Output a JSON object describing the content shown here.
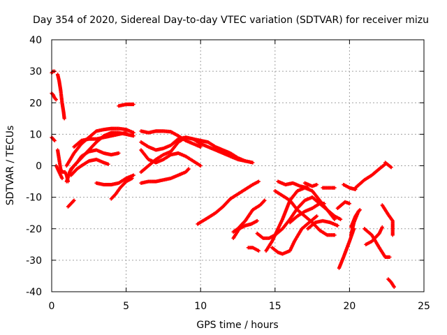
{
  "chart_data": {
    "type": "scatter",
    "title": "Day 354 of 2020, Sidereal Day-to-day VTEC variation (SDTVAR) for receiver mizu",
    "xlabel": "GPS time / hours",
    "ylabel": "SDTVAR / TECUs",
    "xlim": [
      0,
      25
    ],
    "ylim": [
      -40,
      40
    ],
    "xticks": [
      "0",
      "5",
      "10",
      "15",
      "20",
      "25"
    ],
    "yticks": [
      "-40",
      "-30",
      "-20",
      "-10",
      "0",
      "10",
      "20",
      "30",
      "40"
    ],
    "grid": true,
    "marker": "plus",
    "color": "#ff0000",
    "tracks": [
      [
        [
          0.0,
          29.5
        ],
        [
          0.1,
          30
        ],
        [
          0.2,
          30
        ]
      ],
      [
        [
          0.0,
          23
        ],
        [
          0.1,
          22.5
        ],
        [
          0.2,
          21.5
        ],
        [
          0.3,
          21
        ]
      ],
      [
        [
          0.4,
          29
        ],
        [
          0.5,
          27
        ],
        [
          0.6,
          24
        ],
        [
          0.7,
          20
        ],
        [
          0.8,
          17
        ],
        [
          0.85,
          15
        ]
      ],
      [
        [
          0.0,
          9
        ],
        [
          0.1,
          8.5
        ],
        [
          0.2,
          8
        ]
      ],
      [
        [
          0.4,
          5
        ],
        [
          0.5,
          2
        ],
        [
          0.6,
          -1
        ],
        [
          0.7,
          -2
        ],
        [
          0.9,
          -2
        ],
        [
          1.0,
          -3
        ],
        [
          1.1,
          -5
        ]
      ],
      [
        [
          0.3,
          0
        ],
        [
          0.5,
          -2
        ],
        [
          0.7,
          -4
        ]
      ],
      [
        [
          1.1,
          -13
        ],
        [
          1.2,
          -12.5
        ],
        [
          1.3,
          -12
        ],
        [
          1.5,
          -11
        ]
      ],
      [
        [
          4.5,
          19
        ],
        [
          5.0,
          19.5
        ],
        [
          5.5,
          19.5
        ]
      ],
      [
        [
          1.0,
          0
        ],
        [
          1.5,
          4
        ],
        [
          2.0,
          7
        ],
        [
          2.5,
          9
        ],
        [
          3.0,
          11
        ],
        [
          3.5,
          11.5
        ],
        [
          4.0,
          11.8
        ],
        [
          4.5,
          11.8
        ],
        [
          5.0,
          11.5
        ],
        [
          5.5,
          10.5
        ]
      ],
      [
        [
          1.2,
          -2
        ],
        [
          1.5,
          0
        ],
        [
          2.0,
          2.5
        ],
        [
          2.5,
          5
        ],
        [
          3.0,
          7.5
        ],
        [
          3.5,
          9.5
        ],
        [
          4.0,
          10.5
        ],
        [
          4.5,
          10.5
        ],
        [
          5.0,
          10
        ],
        [
          5.5,
          9.5
        ]
      ],
      [
        [
          1.0,
          -5
        ],
        [
          1.3,
          -1
        ],
        [
          1.7,
          1
        ],
        [
          2.0,
          3
        ],
        [
          2.5,
          4.5
        ],
        [
          3.0,
          5
        ],
        [
          3.5,
          4
        ],
        [
          4.0,
          3.5
        ],
        [
          4.5,
          4
        ]
      ],
      [
        [
          1.3,
          -3
        ],
        [
          1.7,
          -1
        ],
        [
          2.0,
          0
        ],
        [
          2.5,
          1.5
        ],
        [
          3.0,
          2
        ],
        [
          3.5,
          1
        ],
        [
          3.8,
          0.5
        ]
      ],
      [
        [
          1.5,
          6
        ],
        [
          2.0,
          8
        ],
        [
          2.5,
          8.5
        ],
        [
          3.0,
          8.5
        ],
        [
          3.5,
          9
        ],
        [
          4.0,
          9.5
        ],
        [
          4.5,
          10
        ],
        [
          5.0,
          10.5
        ]
      ],
      [
        [
          3.0,
          -5.5
        ],
        [
          3.5,
          -6
        ],
        [
          4.0,
          -6
        ],
        [
          4.5,
          -5.5
        ],
        [
          5.0,
          -4
        ],
        [
          5.5,
          -3
        ]
      ],
      [
        [
          4.0,
          -10.5
        ],
        [
          4.3,
          -9
        ],
        [
          4.6,
          -7
        ],
        [
          5.0,
          -5
        ],
        [
          5.4,
          -4
        ]
      ],
      [
        [
          6.0,
          11
        ],
        [
          6.5,
          10.5
        ],
        [
          7.0,
          11
        ],
        [
          7.5,
          11
        ],
        [
          8.0,
          10.8
        ],
        [
          8.5,
          9.5
        ],
        [
          9.0,
          8
        ],
        [
          9.5,
          7
        ],
        [
          10.0,
          6
        ]
      ],
      [
        [
          6.0,
          7.5
        ],
        [
          6.5,
          6
        ],
        [
          7.0,
          5
        ],
        [
          7.5,
          5.5
        ],
        [
          8.0,
          6.5
        ],
        [
          8.5,
          8.5
        ],
        [
          9.0,
          9
        ],
        [
          9.5,
          8.5
        ],
        [
          10.0,
          8
        ],
        [
          10.5,
          7.5
        ],
        [
          11.0,
          6
        ],
        [
          11.5,
          5
        ],
        [
          12.0,
          4
        ],
        [
          12.5,
          2.5
        ],
        [
          13.0,
          1.5
        ],
        [
          13.5,
          1
        ]
      ],
      [
        [
          6.0,
          -2
        ],
        [
          6.5,
          0
        ],
        [
          7.0,
          2
        ],
        [
          7.5,
          3.5
        ],
        [
          8.0,
          4.5
        ],
        [
          8.5,
          7.5
        ],
        [
          9.0,
          9
        ],
        [
          9.5,
          8.5
        ],
        [
          10.0,
          7
        ],
        [
          10.5,
          6
        ],
        [
          11.0,
          5
        ],
        [
          11.5,
          4
        ],
        [
          12.0,
          3
        ],
        [
          12.5,
          2
        ],
        [
          13.0,
          1.5
        ]
      ],
      [
        [
          6.0,
          5
        ],
        [
          6.5,
          2
        ],
        [
          7.0,
          1
        ],
        [
          7.5,
          2
        ],
        [
          8.0,
          3.5
        ],
        [
          8.5,
          4
        ],
        [
          9.0,
          3
        ],
        [
          9.5,
          1.5
        ],
        [
          10.0,
          0
        ]
      ],
      [
        [
          6.0,
          -5.5
        ],
        [
          6.5,
          -5
        ],
        [
          7.0,
          -5
        ],
        [
          7.5,
          -4.5
        ],
        [
          8.0,
          -4
        ],
        [
          8.5,
          -3
        ],
        [
          9.0,
          -2
        ],
        [
          9.2,
          -1
        ]
      ],
      [
        [
          9.8,
          -18.5
        ],
        [
          10.5,
          -16.5
        ],
        [
          11.0,
          -15
        ],
        [
          11.5,
          -13
        ],
        [
          12.0,
          -10.5
        ],
        [
          12.5,
          -9
        ],
        [
          13.0,
          -7.5
        ],
        [
          13.5,
          -6
        ],
        [
          13.9,
          -5
        ]
      ],
      [
        [
          12.2,
          -21
        ],
        [
          12.5,
          -20
        ],
        [
          13.0,
          -17.5
        ],
        [
          13.5,
          -14
        ],
        [
          14.0,
          -12.5
        ],
        [
          14.3,
          -11
        ]
      ],
      [
        [
          12.2,
          -23
        ],
        [
          12.6,
          -20
        ],
        [
          13.0,
          -19
        ],
        [
          13.4,
          -18.5
        ],
        [
          13.8,
          -17.5
        ]
      ],
      [
        [
          13.2,
          -26
        ],
        [
          13.5,
          -26
        ],
        [
          13.9,
          -27
        ]
      ],
      [
        [
          13.8,
          -21.5
        ],
        [
          14.2,
          -23
        ],
        [
          14.6,
          -23
        ],
        [
          15.0,
          -22
        ],
        [
          15.5,
          -20
        ],
        [
          16.0,
          -17
        ],
        [
          16.5,
          -13.5
        ],
        [
          17.0,
          -11
        ],
        [
          17.5,
          -10
        ],
        [
          18.0,
          -12
        ],
        [
          18.5,
          -14
        ],
        [
          19.0,
          -16
        ],
        [
          19.4,
          -17
        ]
      ],
      [
        [
          14.4,
          -27
        ],
        [
          14.8,
          -24
        ],
        [
          15.2,
          -20
        ],
        [
          15.5,
          -17
        ],
        [
          16.0,
          -11
        ],
        [
          16.5,
          -8
        ],
        [
          17.0,
          -7
        ],
        [
          17.5,
          -8
        ],
        [
          18.0,
          -11
        ],
        [
          18.5,
          -14
        ],
        [
          19.0,
          -17
        ]
      ],
      [
        [
          14.8,
          -26
        ],
        [
          15.2,
          -27.5
        ],
        [
          15.5,
          -28
        ],
        [
          16.0,
          -27
        ],
        [
          16.3,
          -24
        ],
        [
          16.8,
          -20
        ],
        [
          17.3,
          -18
        ],
        [
          17.8,
          -16
        ]
      ],
      [
        [
          15.0,
          -8
        ],
        [
          15.5,
          -9.5
        ],
        [
          16.0,
          -11
        ],
        [
          16.5,
          -14
        ],
        [
          17.0,
          -16
        ],
        [
          17.5,
          -18
        ],
        [
          18.0,
          -20.5
        ],
        [
          18.5,
          -22
        ],
        [
          19.0,
          -22
        ]
      ],
      [
        [
          15.2,
          -5
        ],
        [
          15.7,
          -6
        ],
        [
          16.2,
          -5.5
        ],
        [
          16.7,
          -6.5
        ],
        [
          17.2,
          -7
        ]
      ],
      [
        [
          16.0,
          -18
        ],
        [
          16.5,
          -16
        ],
        [
          17.0,
          -14.5
        ],
        [
          17.5,
          -13.5
        ],
        [
          18.0,
          -12
        ],
        [
          18.3,
          -12
        ]
      ],
      [
        [
          17.2,
          -20
        ],
        [
          17.7,
          -18
        ],
        [
          18.2,
          -17.5
        ],
        [
          18.7,
          -18
        ],
        [
          19.2,
          -19
        ]
      ],
      [
        [
          17.0,
          -5.5
        ],
        [
          17.5,
          -6.5
        ],
        [
          17.8,
          -6
        ]
      ],
      [
        [
          18.2,
          -7
        ],
        [
          18.6,
          -7
        ],
        [
          19.0,
          -7
        ]
      ],
      [
        [
          19.2,
          -13.5
        ],
        [
          19.7,
          -11.5
        ],
        [
          20.0,
          -12
        ]
      ],
      [
        [
          19.6,
          -6
        ],
        [
          20.0,
          -7
        ],
        [
          20.4,
          -7.5
        ]
      ],
      [
        [
          19.3,
          -32.5
        ],
        [
          19.6,
          -29
        ],
        [
          20.0,
          -24
        ],
        [
          20.3,
          -20
        ]
      ],
      [
        [
          20.1,
          -22
        ],
        [
          20.3,
          -18
        ],
        [
          20.6,
          -14.5
        ],
        [
          20.7,
          -14
        ]
      ],
      [
        [
          20.1,
          -19.5
        ],
        [
          20.4,
          -16
        ],
        [
          20.6,
          -14.5
        ]
      ],
      [
        [
          20.4,
          -7
        ],
        [
          21.0,
          -4.5
        ],
        [
          21.5,
          -3
        ],
        [
          22.0,
          -1
        ],
        [
          22.4,
          0.5
        ]
      ],
      [
        [
          22.4,
          1
        ],
        [
          22.8,
          -0.5
        ]
      ],
      [
        [
          21.0,
          -20
        ],
        [
          21.5,
          -22
        ],
        [
          22.0,
          -26
        ],
        [
          22.4,
          -29
        ],
        [
          22.7,
          -29
        ]
      ],
      [
        [
          21.1,
          -25
        ],
        [
          21.5,
          -24
        ],
        [
          22.0,
          -21.5
        ],
        [
          22.2,
          -19.5
        ]
      ],
      [
        [
          22.2,
          -12.5
        ],
        [
          22.6,
          -15.5
        ],
        [
          22.9,
          -17.5
        ],
        [
          22.9,
          -22
        ]
      ],
      [
        [
          22.6,
          -36
        ],
        [
          22.8,
          -37
        ],
        [
          23.0,
          -38.5
        ]
      ]
    ]
  }
}
